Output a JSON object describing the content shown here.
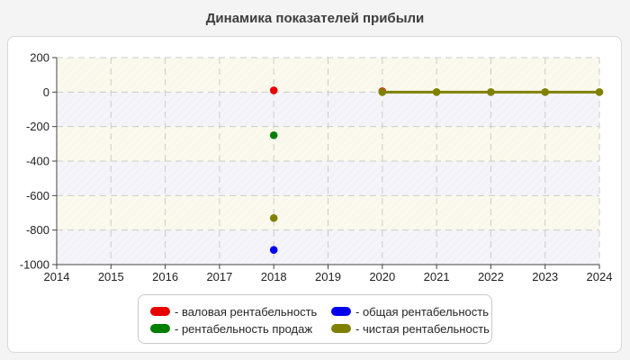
{
  "page": {
    "title": "Динамика показателей прибыли"
  },
  "colors": {
    "page_bg": "#f4f4f4",
    "card_bg": "#ffffff",
    "card_border": "#d9d9d9",
    "band_yellow": "#f9f8ea",
    "band_blue": "#f2f2f8",
    "grid": "#cccccc",
    "axis": "#444444",
    "tick_label": "#1f1f1f",
    "title_text": "#3d3d3d"
  },
  "chart_data": {
    "type": "line",
    "title": "Динамика показателей прибыли",
    "xlim": [
      2014,
      2024
    ],
    "ylim": [
      -1000,
      200
    ],
    "x_ticks": [
      2014,
      2015,
      2016,
      2017,
      2018,
      2019,
      2020,
      2021,
      2022,
      2023,
      2024
    ],
    "y_ticks": [
      200,
      0,
      -200,
      -400,
      -600,
      -800,
      -1000
    ],
    "grid": "dashed",
    "legend_position": "bottom",
    "series": [
      {
        "name": "валовая рентабельность",
        "color": "#e80000",
        "marker": "circle",
        "line": false,
        "points": [
          [
            2018,
            10
          ],
          [
            2020,
            5
          ]
        ]
      },
      {
        "name": "рентабельность продаж",
        "color": "#008000",
        "marker": "circle",
        "line": false,
        "points": [
          [
            2018,
            -250
          ]
        ]
      },
      {
        "name": "общая рентабельность",
        "color": "#0000ee",
        "marker": "circle",
        "line": false,
        "points": [
          [
            2018,
            -915
          ]
        ]
      },
      {
        "name": "чистая рентабельность",
        "color": "#808000",
        "marker": "circle",
        "line": true,
        "line_from_x": 2020,
        "points": [
          [
            2018,
            -730
          ],
          [
            2020,
            0
          ],
          [
            2021,
            0
          ],
          [
            2022,
            0
          ],
          [
            2023,
            0
          ],
          [
            2024,
            0
          ]
        ]
      }
    ]
  },
  "legend": {
    "items": [
      {
        "label": "- валовая рентабельность",
        "color": "#e80000"
      },
      {
        "label": "- общая рентабельность",
        "color": "#0000ee"
      },
      {
        "label": "- рентабельность продаж",
        "color": "#008000"
      },
      {
        "label": "- чистая рентабельность",
        "color": "#808000"
      }
    ]
  }
}
